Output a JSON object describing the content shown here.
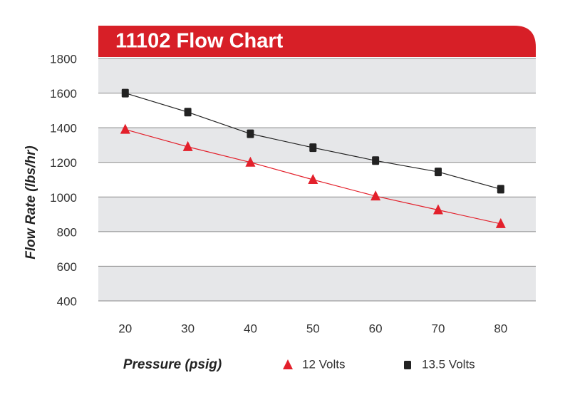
{
  "chart_data": {
    "type": "line",
    "title": "11102 Flow Chart",
    "x_label": "Pressure (psig)",
    "y_label": "Flow Rate (lbs/hr)",
    "x": [
      20,
      30,
      40,
      50,
      60,
      70,
      80
    ],
    "series": [
      {
        "name": "12 Volts",
        "color": "#e3202b",
        "marker": "triangle",
        "values": [
          1390,
          1290,
          1200,
          1100,
          1005,
          925,
          845
        ]
      },
      {
        "name": "13.5 Volts",
        "color": "#222222",
        "marker": "square",
        "values": [
          1600,
          1490,
          1365,
          1285,
          1210,
          1145,
          1045
        ]
      }
    ],
    "xlim": [
      15.7,
      85.6
    ],
    "xticks": [
      20,
      30,
      40,
      50,
      60,
      70,
      80
    ],
    "ylim": [
      400,
      1800
    ],
    "yticks": [
      400,
      600,
      800,
      1000,
      1200,
      1400,
      1600,
      1800
    ],
    "grid": true,
    "header_color": "#d71f27"
  }
}
